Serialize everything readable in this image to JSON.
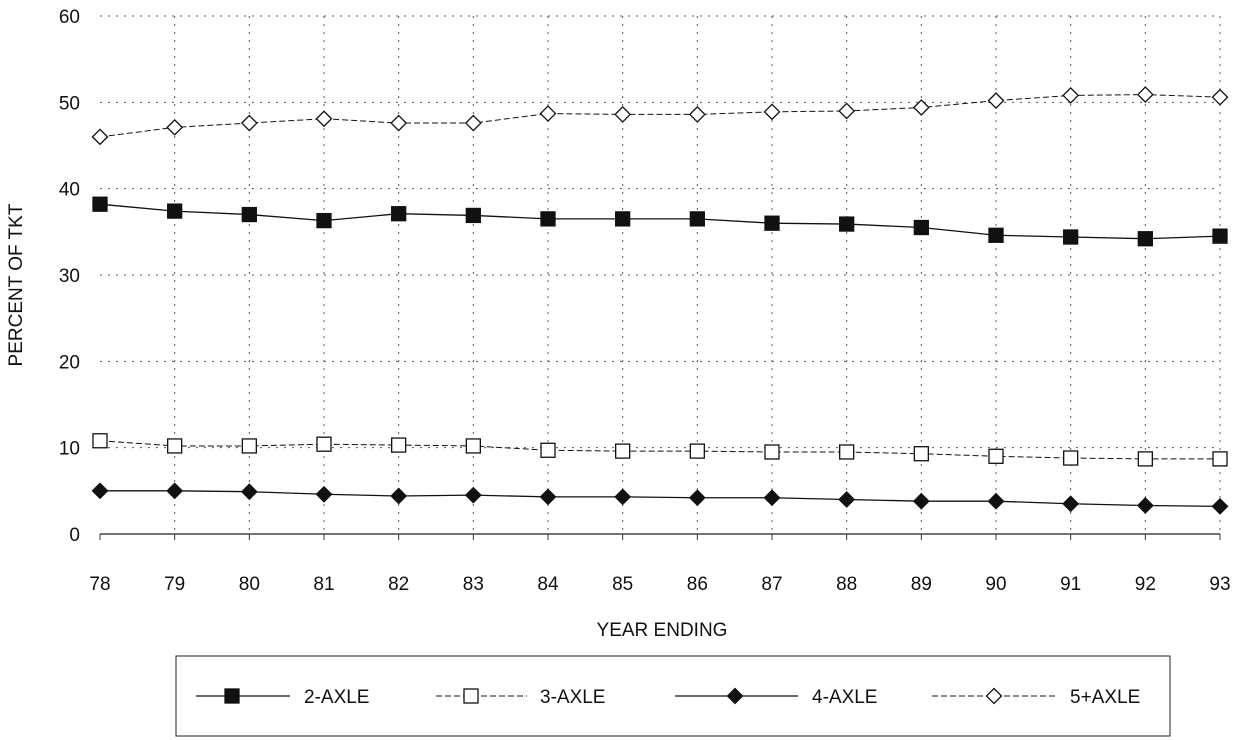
{
  "chart_data": {
    "type": "line",
    "title": "",
    "xlabel": "YEAR ENDING",
    "ylabel": "PERCENT OF TKT",
    "categories": [
      "78",
      "79",
      "80",
      "81",
      "82",
      "83",
      "84",
      "85",
      "86",
      "87",
      "88",
      "89",
      "90",
      "91",
      "92",
      "93"
    ],
    "yticks": [
      "0",
      "10",
      "20",
      "30",
      "40",
      "50",
      "60"
    ],
    "ylim": [
      0,
      60
    ],
    "grid": true,
    "legend_position": "bottom",
    "series": [
      {
        "name": "2-AXLE",
        "marker": "filled-square",
        "color": "#111111",
        "values": [
          38.2,
          37.4,
          37.0,
          36.3,
          37.1,
          36.9,
          36.5,
          36.5,
          36.5,
          36.0,
          35.9,
          35.5,
          34.6,
          34.4,
          34.2,
          34.5
        ]
      },
      {
        "name": "3-AXLE",
        "marker": "open-square",
        "color": "#111111",
        "values": [
          10.8,
          10.2,
          10.2,
          10.4,
          10.3,
          10.2,
          9.7,
          9.6,
          9.6,
          9.5,
          9.5,
          9.3,
          9.0,
          8.8,
          8.7,
          8.7
        ]
      },
      {
        "name": "4-AXLE",
        "marker": "filled-diamond",
        "color": "#111111",
        "values": [
          5.0,
          5.0,
          4.9,
          4.6,
          4.4,
          4.5,
          4.3,
          4.3,
          4.2,
          4.2,
          4.0,
          3.8,
          3.8,
          3.5,
          3.3,
          3.2
        ]
      },
      {
        "name": "5+AXLE",
        "marker": "open-diamond",
        "color": "#111111",
        "values": [
          46.0,
          47.1,
          47.6,
          48.1,
          47.6,
          47.6,
          48.7,
          48.6,
          48.6,
          48.9,
          49.0,
          49.4,
          50.2,
          50.8,
          50.9,
          50.6
        ]
      }
    ]
  }
}
